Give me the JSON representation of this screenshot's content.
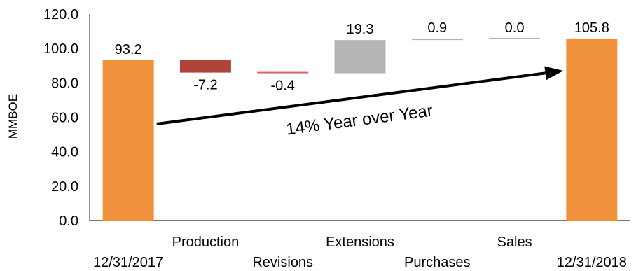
{
  "chart_data": {
    "type": "bar",
    "subtype": "waterfall",
    "ylabel": "MMBOE",
    "ylim": [
      0,
      120
    ],
    "yticks": [
      "0.0",
      "20.0",
      "40.0",
      "60.0",
      "80.0",
      "100.0",
      "120.0"
    ],
    "grid": false,
    "steps": [
      {
        "category": "12/31/2017",
        "value": 93.2,
        "label": "93.2",
        "kind": "total",
        "color": "#f0913b"
      },
      {
        "category": "Production",
        "value": -7.2,
        "label": "-7.2",
        "kind": "delta",
        "color": "#b0433a"
      },
      {
        "category": "Revisions",
        "value": -0.4,
        "label": "-0.4",
        "kind": "delta",
        "color": "#d96a5c"
      },
      {
        "category": "Extensions",
        "value": 19.3,
        "label": "19.3",
        "kind": "delta",
        "color": "#b5b5b5"
      },
      {
        "category": "Purchases",
        "value": 0.9,
        "label": "0.9",
        "kind": "delta",
        "color": "#b5b5b5"
      },
      {
        "category": "Sales",
        "value": 0.0,
        "label": "0.0",
        "kind": "delta",
        "color": "#b5b5b5"
      },
      {
        "category": "12/31/2018",
        "value": 105.8,
        "label": "105.8",
        "kind": "total",
        "color": "#f0913b"
      }
    ],
    "annotation": {
      "text": "14% Year over Year",
      "from_category": "12/31/2017",
      "to_category": "12/31/2018"
    }
  }
}
